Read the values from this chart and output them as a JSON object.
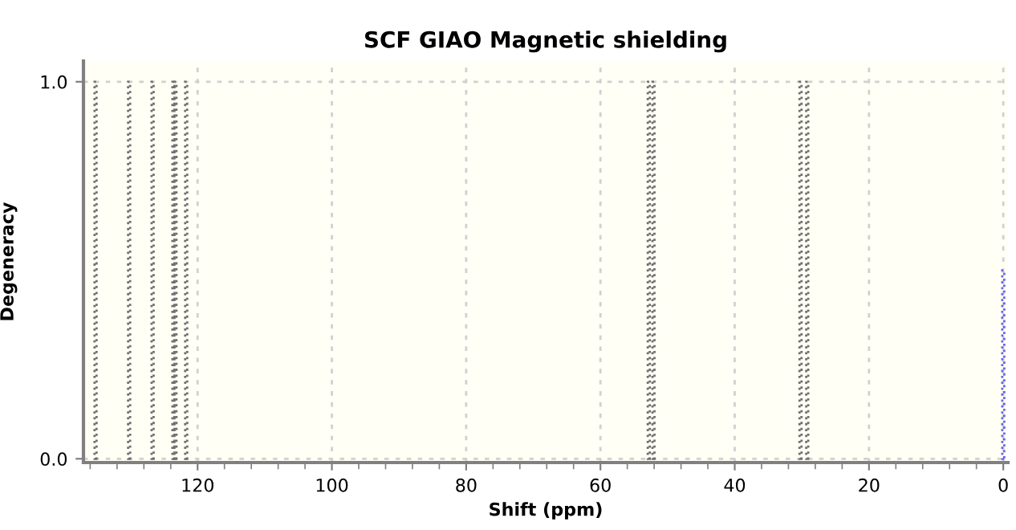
{
  "chart_data": {
    "type": "bar",
    "title": "SCF GIAO Magnetic shielding",
    "xlabel": "Shift (ppm)",
    "ylabel": "Degeneracy",
    "series": [
      {
        "color": "#707070",
        "x": [
          135.2,
          130.2,
          126.7,
          123.6,
          123.3,
          121.7,
          52.8,
          52.1,
          30.2,
          29.2
        ],
        "values": [
          1,
          1,
          1,
          1,
          1,
          1,
          1,
          1,
          1,
          1
        ]
      },
      {
        "color": "#6666ee",
        "x": [
          0
        ],
        "values": [
          0.5
        ]
      }
    ],
    "line_style": "dotted",
    "xlim": [
      137,
      -0.7
    ],
    "ylim": [
      -0.01,
      1.055
    ],
    "xticks": [
      120,
      100,
      80,
      60,
      40,
      20,
      0
    ],
    "yticks": [
      {
        "value": 0,
        "label": "0.0"
      },
      {
        "value": 1,
        "label": "1.0"
      }
    ],
    "grid": true,
    "legend": false
  }
}
